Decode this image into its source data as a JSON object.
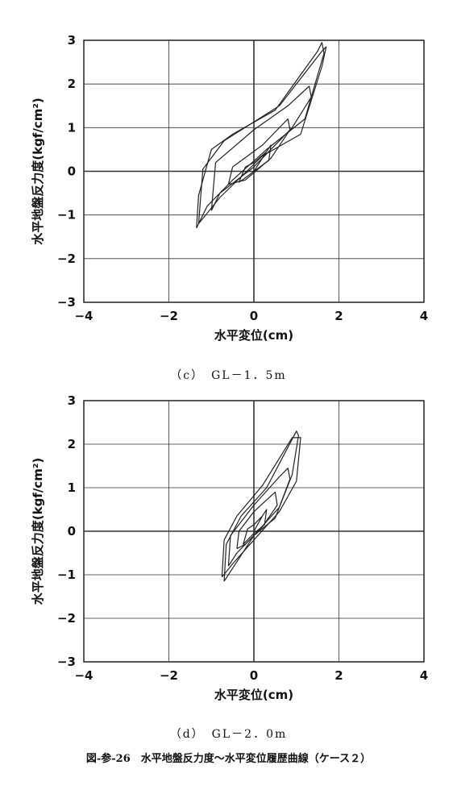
{
  "figure_caption": "図-参-26　水平地盤反力度～水平変位履歴曲線（ケース２）",
  "chart_data": [
    {
      "type": "line",
      "caption": "（c）　GL－1．5m",
      "xlabel": "水平変位(cm)",
      "ylabel": "水平地盤反力度(kgf/cm²)",
      "xlim": [
        -4,
        4
      ],
      "ylim": [
        -3,
        3
      ],
      "xticks": [
        "−4",
        "−2",
        "0",
        "2",
        "4"
      ],
      "yticks": [
        "3",
        "2",
        "1",
        "0",
        "−1",
        "−2",
        "−3"
      ],
      "grid": true,
      "series": [
        {
          "points": [
            [
              0,
              0
            ],
            [
              0.3,
              0.45
            ],
            [
              0.4,
              0.6
            ],
            [
              0.35,
              0.25
            ],
            [
              0,
              0
            ],
            [
              -0.2,
              -0.15
            ],
            [
              -0.35,
              -0.25
            ],
            [
              -0.2,
              0.1
            ],
            [
              0,
              0.2
            ],
            [
              0.3,
              0.45
            ]
          ]
        },
        {
          "points": [
            [
              -0.6,
              -0.3
            ],
            [
              -0.5,
              0.1
            ],
            [
              0.2,
              0.6
            ],
            [
              0.8,
              1.2
            ],
            [
              0.85,
              0.95
            ],
            [
              0.4,
              0.3
            ],
            [
              -0.2,
              -0.2
            ],
            [
              -0.6,
              -0.3
            ]
          ]
        },
        {
          "points": [
            [
              -1.0,
              -0.9
            ],
            [
              -0.9,
              0.2
            ],
            [
              0.0,
              0.95
            ],
            [
              0.8,
              1.5
            ],
            [
              1.3,
              1.95
            ],
            [
              1.35,
              1.7
            ],
            [
              0.9,
              1.0
            ],
            [
              0.0,
              0.1
            ],
            [
              -0.8,
              -0.5
            ],
            [
              -1.0,
              -0.9
            ]
          ]
        },
        {
          "points": [
            [
              -1.35,
              -1.3
            ],
            [
              -1.3,
              -0.55
            ],
            [
              -1.0,
              0.5
            ],
            [
              -0.5,
              0.85
            ],
            [
              0.5,
              1.4
            ],
            [
              1.5,
              2.75
            ],
            [
              1.6,
              2.95
            ],
            [
              1.65,
              2.7
            ],
            [
              1.2,
              1.2
            ],
            [
              0.3,
              0.5
            ],
            [
              -0.5,
              -0.2
            ],
            [
              -1.1,
              -0.8
            ],
            [
              -1.35,
              -1.3
            ]
          ]
        },
        {
          "points": [
            [
              -1.3,
              -1.2
            ],
            [
              -1.2,
              0.05
            ],
            [
              -0.7,
              0.7
            ],
            [
              0.6,
              1.5
            ],
            [
              1.6,
              2.75
            ],
            [
              1.7,
              2.85
            ],
            [
              1.6,
              2.4
            ],
            [
              1.1,
              0.85
            ],
            [
              0.2,
              0.35
            ],
            [
              -0.8,
              -0.6
            ],
            [
              -1.3,
              -1.2
            ]
          ]
        }
      ]
    },
    {
      "type": "line",
      "caption": "（d）　GL－2．0m",
      "xlabel": "水平変位(cm)",
      "ylabel": "水平地盤反力度(kgf/cm²)",
      "xlim": [
        -4,
        4
      ],
      "ylim": [
        -3,
        3
      ],
      "xticks": [
        "−4",
        "−2",
        "0",
        "2",
        "4"
      ],
      "yticks": [
        "3",
        "2",
        "1",
        "0",
        "−1",
        "−2",
        "−3"
      ],
      "grid": true,
      "series": [
        {
          "points": [
            [
              0,
              0
            ],
            [
              0.2,
              0.35
            ],
            [
              0.3,
              0.5
            ],
            [
              0.25,
              0.15
            ],
            [
              0,
              -0.05
            ],
            [
              -0.15,
              -0.2
            ],
            [
              -0.25,
              -0.3
            ],
            [
              -0.15,
              0.05
            ],
            [
              0,
              0.15
            ],
            [
              0.2,
              0.35
            ]
          ]
        },
        {
          "points": [
            [
              -0.4,
              -0.4
            ],
            [
              -0.35,
              0.0
            ],
            [
              0.0,
              0.45
            ],
            [
              0.5,
              0.9
            ],
            [
              0.55,
              0.6
            ],
            [
              0.2,
              0.1
            ],
            [
              -0.2,
              -0.3
            ],
            [
              -0.4,
              -0.4
            ]
          ]
        },
        {
          "points": [
            [
              -0.6,
              -0.8
            ],
            [
              -0.55,
              -0.1
            ],
            [
              0.0,
              0.6
            ],
            [
              0.6,
              1.25
            ],
            [
              0.8,
              1.45
            ],
            [
              0.85,
              1.2
            ],
            [
              0.5,
              0.3
            ],
            [
              0.0,
              -0.1
            ],
            [
              -0.4,
              -0.5
            ],
            [
              -0.6,
              -0.8
            ]
          ]
        },
        {
          "points": [
            [
              -0.7,
              -1.15
            ],
            [
              -0.65,
              -0.3
            ],
            [
              -0.3,
              0.35
            ],
            [
              0.3,
              1.0
            ],
            [
              1.0,
              2.3
            ],
            [
              1.05,
              2.2
            ],
            [
              0.9,
              1.3
            ],
            [
              0.6,
              0.55
            ],
            [
              0.0,
              -0.1
            ],
            [
              -0.4,
              -0.7
            ],
            [
              -0.7,
              -1.15
            ]
          ]
        },
        {
          "points": [
            [
              -0.75,
              -1.05
            ],
            [
              -0.7,
              -0.2
            ],
            [
              -0.4,
              0.35
            ],
            [
              0.2,
              1.05
            ],
            [
              0.9,
              2.15
            ],
            [
              1.1,
              2.15
            ],
            [
              1.0,
              1.15
            ],
            [
              0.6,
              0.45
            ],
            [
              0.0,
              -0.2
            ],
            [
              -0.5,
              -0.75
            ],
            [
              -0.75,
              -1.05
            ]
          ]
        }
      ]
    }
  ]
}
